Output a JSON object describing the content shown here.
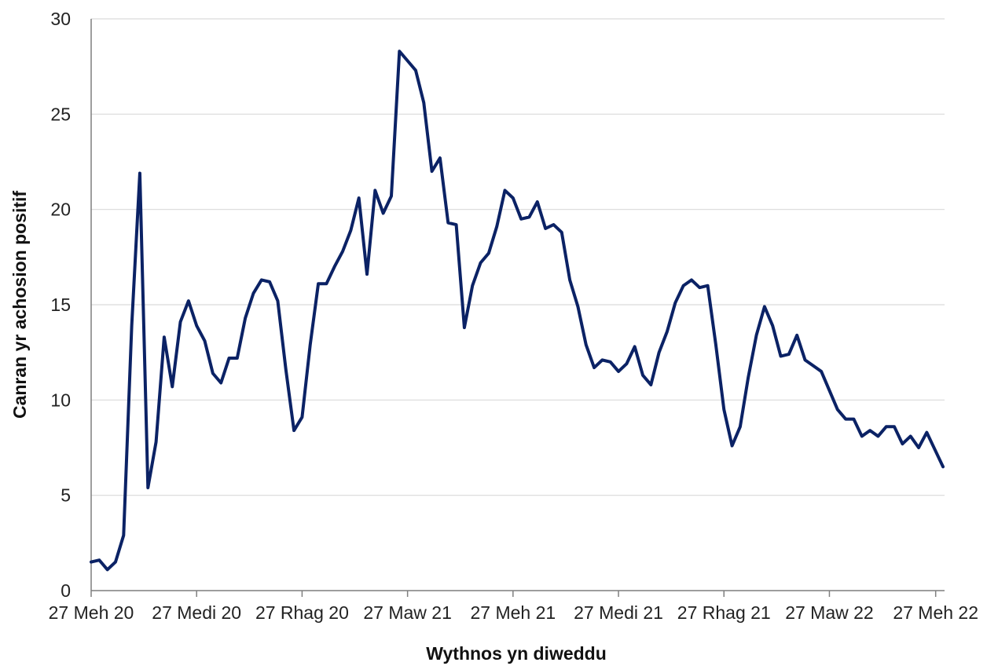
{
  "chart_data": {
    "type": "line",
    "xlabel": "Wythnos yn diweddu",
    "ylabel": "Canran yr achosion positif",
    "ylim": [
      0,
      30
    ],
    "yticks": [
      0,
      5,
      10,
      15,
      20,
      25,
      30
    ],
    "grid": true,
    "x_tick_labels": [
      "27 Meh 20",
      "27 Medi 20",
      "27 Rhag 20",
      "27 Maw 21",
      "27 Meh 21",
      "27 Medi 21",
      "27 Rhag 21",
      "27 Maw 22",
      "27 Meh 22"
    ],
    "series": [
      {
        "color": "#0b2265",
        "values": [
          1.5,
          1.6,
          1.1,
          1.5,
          2.9,
          13.9,
          21.9,
          5.4,
          7.8,
          13.3,
          10.7,
          14.1,
          15.2,
          13.9,
          13.1,
          11.4,
          10.9,
          12.2,
          12.2,
          14.3,
          15.6,
          16.3,
          16.2,
          15.2,
          11.6,
          8.4,
          9.1,
          12.9,
          16.1,
          16.1,
          17.0,
          17.8,
          18.9,
          20.6,
          16.6,
          21.0,
          19.8,
          20.7,
          28.3,
          27.8,
          27.3,
          25.6,
          22.0,
          22.7,
          19.3,
          19.2,
          13.8,
          16.0,
          17.2,
          17.7,
          19.1,
          21.0,
          20.6,
          19.5,
          19.6,
          20.4,
          19.0,
          19.2,
          18.8,
          16.3,
          14.9,
          12.9,
          11.7,
          12.1,
          12.0,
          11.5,
          11.9,
          12.8,
          11.3,
          10.8,
          12.5,
          13.6,
          15.1,
          16.0,
          16.3,
          15.9,
          16.0,
          12.9,
          9.5,
          7.6,
          8.6,
          11.2,
          13.4,
          14.9,
          13.9,
          12.3,
          12.4,
          13.4,
          12.1,
          11.8,
          11.5,
          10.5,
          9.5,
          9.0,
          9.0,
          8.1,
          8.4,
          8.1,
          8.6,
          8.6,
          7.7,
          8.1,
          7.5,
          8.3,
          7.4,
          6.5
        ]
      }
    ]
  }
}
